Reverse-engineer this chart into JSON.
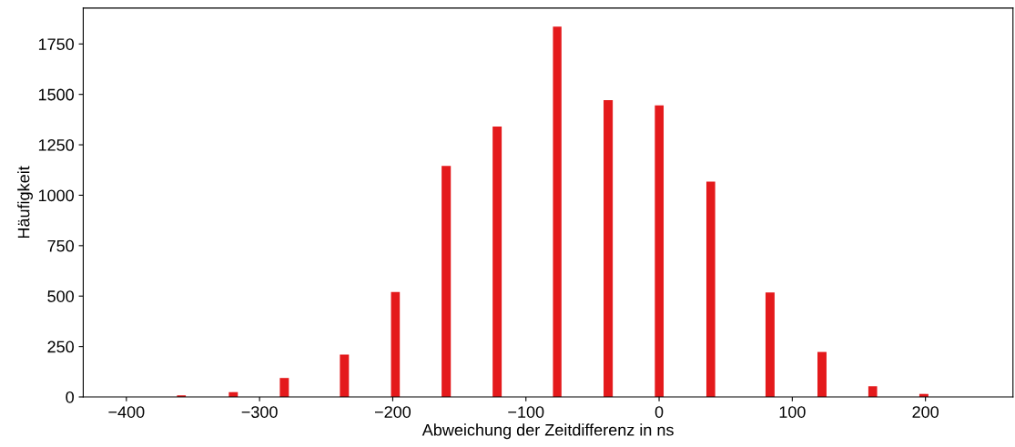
{
  "chart_data": {
    "type": "histogram",
    "xlabel": "Abweichung der Zeitdifferenz in ns",
    "ylabel": "Häufigkeit",
    "color": "#e41a1c",
    "bins": [
      -362.0,
      -355.4,
      -323.1,
      -316.3,
      -284.8,
      -278.0,
      -239.7,
      -232.9,
      -201.3,
      -194.7,
      -163.3,
      -156.4,
      -125.0,
      -118.2,
      -79.7,
      -73.3,
      -41.7,
      -34.8,
      -3.2,
      3.4,
      35.5,
      42.1,
      79.9,
      86.7,
      118.9,
      125.7,
      157.1,
      163.7,
      195.4,
      202.2
    ],
    "values": [
      8,
      0,
      24,
      0,
      94,
      0,
      210,
      0,
      520,
      0,
      1145,
      0,
      1340,
      0,
      1836,
      0,
      1471,
      0,
      1445,
      0,
      1068,
      0,
      518,
      0,
      223,
      0,
      53,
      0,
      15
    ],
    "xlim": [
      -432.4,
      265.7
    ],
    "ylim": [
      0,
      1928
    ],
    "xticks": [
      {
        "value": -400,
        "label": "−400"
      },
      {
        "value": -300,
        "label": "−300"
      },
      {
        "value": -200,
        "label": "−200"
      },
      {
        "value": -100,
        "label": "−100"
      },
      0,
      100,
      200
    ],
    "yticks": [
      0,
      250,
      500,
      750,
      1000,
      1250,
      1500,
      1750
    ]
  }
}
